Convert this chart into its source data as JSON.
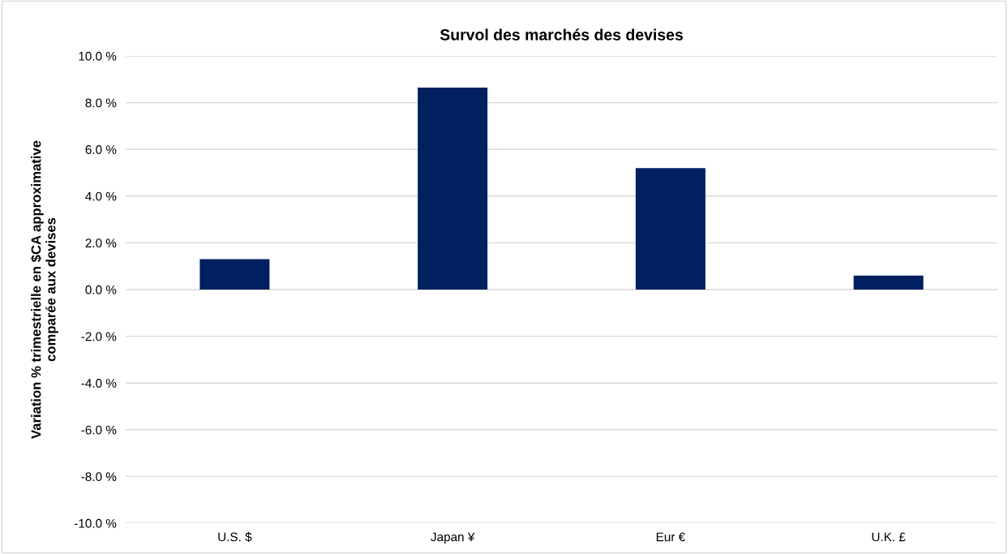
{
  "chart_data": {
    "type": "bar",
    "title": "Survol des marchés des devises",
    "ylabel": "Variation % trimestrielle en $CA approximative\ncomparée aux devises",
    "categories": [
      "U.S. $",
      "Japan ¥",
      "Eur €",
      "U.K. £"
    ],
    "values": [
      1.3,
      8.65,
      5.2,
      0.6
    ],
    "color": "#002060",
    "ylim": [
      -10,
      10
    ],
    "yticks": [
      {
        "value": -10,
        "label": "-10.0 %"
      },
      {
        "value": -8,
        "label": "-8.0 %"
      },
      {
        "value": -6,
        "label": "-6.0 %"
      },
      {
        "value": -4,
        "label": "-4.0 %"
      },
      {
        "value": -2,
        "label": "-2.0 %"
      },
      {
        "value": 0,
        "label": "0.0 %"
      },
      {
        "value": 2,
        "label": "2.0 %"
      },
      {
        "value": 4,
        "label": "4.0 %"
      },
      {
        "value": 6,
        "label": "6.0 %"
      },
      {
        "value": 8,
        "label": "8.0 %"
      },
      {
        "value": 10,
        "label": "10.0 %"
      }
    ],
    "grid": "y"
  }
}
